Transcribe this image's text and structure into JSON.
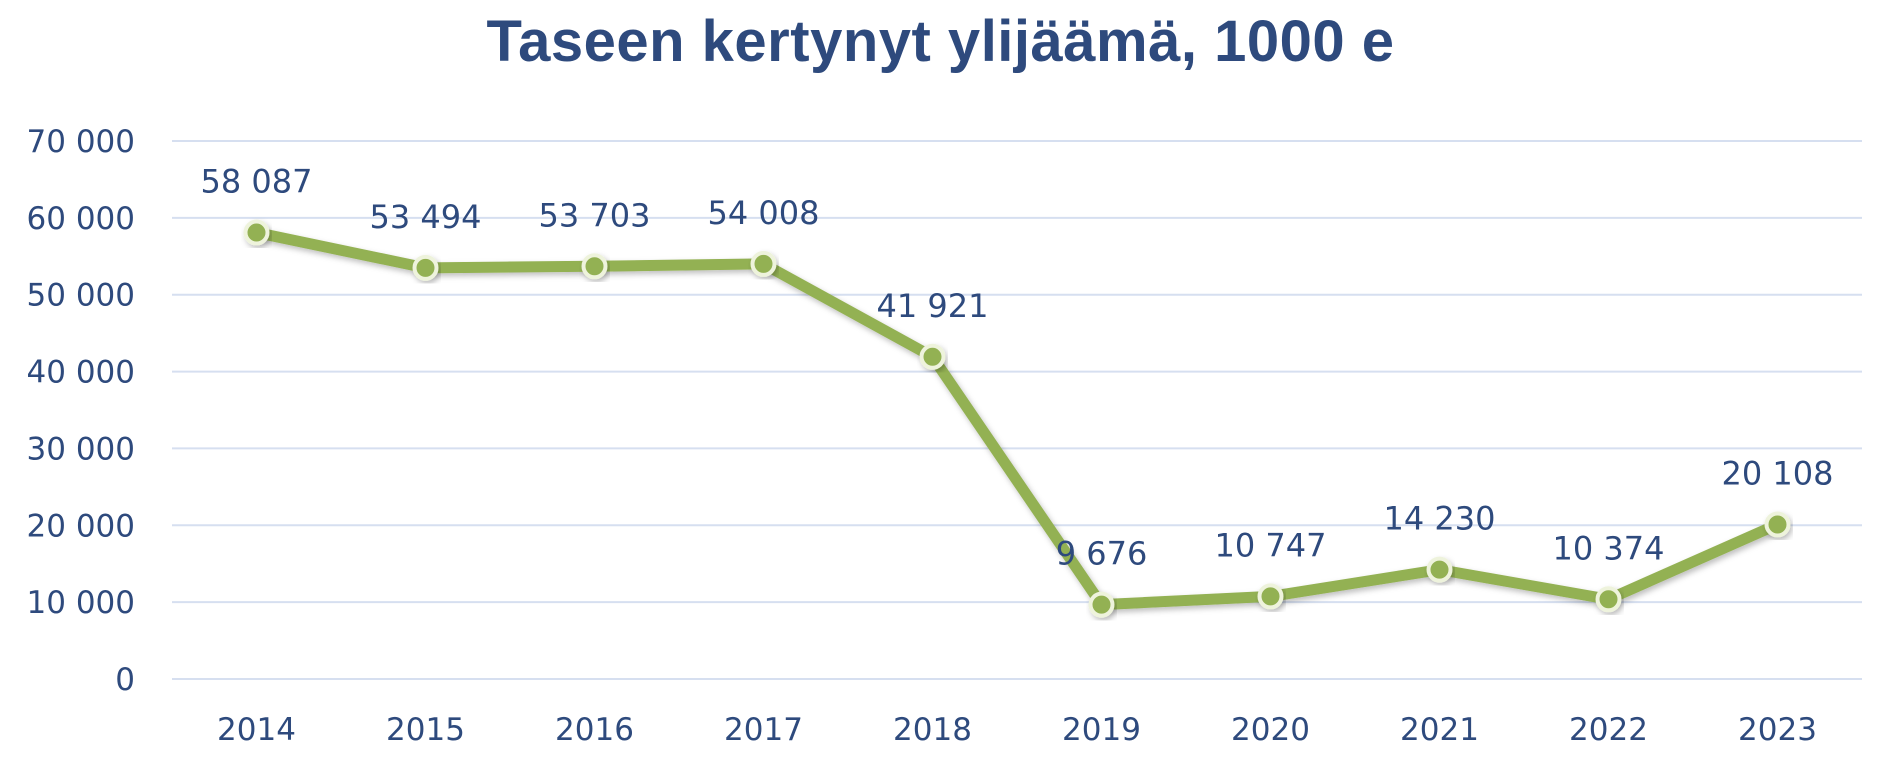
{
  "chart_data": {
    "type": "line",
    "title": "Taseen kertynyt ylijäämä, 1000 e",
    "xlabel": "",
    "ylabel": "",
    "categories": [
      "2014",
      "2015",
      "2016",
      "2017",
      "2018",
      "2019",
      "2020",
      "2021",
      "2022",
      "2023"
    ],
    "series": [
      {
        "values": [
          58087,
          53494,
          53703,
          54008,
          41921,
          9676,
          10747,
          14230,
          10374,
          20108
        ],
        "labels": [
          "58 087",
          "53 494",
          "53 703",
          "54 008",
          "41 921",
          "9 676",
          "10 747",
          "14 230",
          "10 374",
          "20 108"
        ]
      }
    ],
    "ylim": [
      0,
      70000
    ],
    "yticks": [
      0,
      10000,
      20000,
      30000,
      40000,
      50000,
      60000,
      70000
    ],
    "ytick_labels": [
      "0",
      "10 000",
      "20 000",
      "30 000",
      "40 000",
      "50 000",
      "60 000",
      "70 000"
    ],
    "grid": true,
    "legend": "none",
    "colors": {
      "line": "#93b153",
      "marker": "#93b153",
      "marker_edge": "#eef3dc",
      "grid": "#d6dff0",
      "text": "#2e4a7d"
    }
  }
}
